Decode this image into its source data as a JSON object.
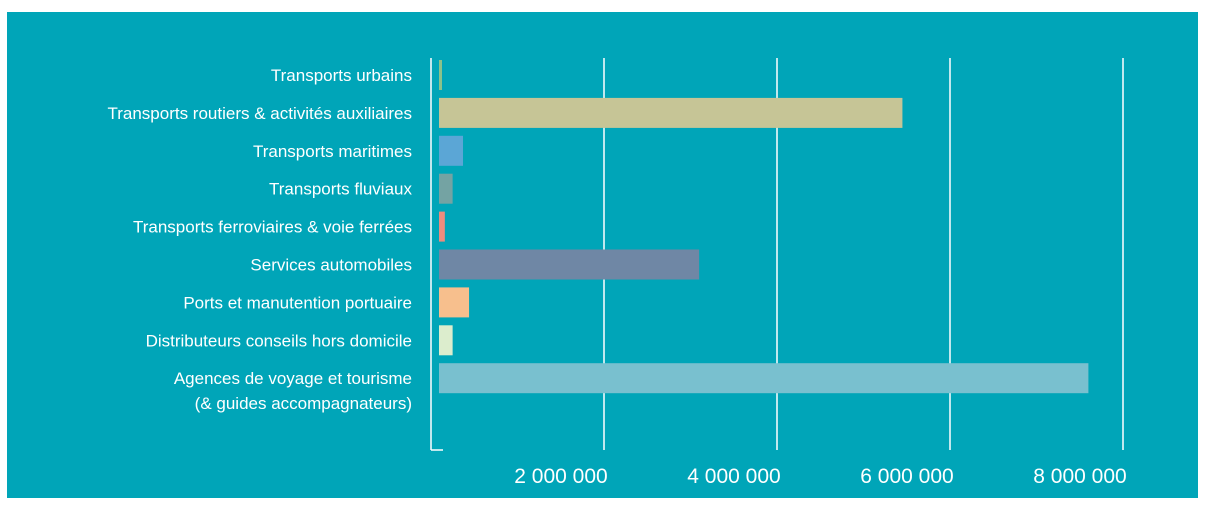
{
  "colors": {
    "background": "#00a5b8",
    "text": "#ffffff",
    "grid": "#ffffff"
  },
  "chart_data": {
    "type": "bar",
    "orientation": "horizontal",
    "title": "",
    "xlabel": "",
    "ylabel": "",
    "xlim": [
      0,
      8000000
    ],
    "grid": true,
    "legend": "none",
    "categories": [
      [
        "Transports urbains"
      ],
      [
        "Transports routiers & activités auxiliaires"
      ],
      [
        "Transports maritimes"
      ],
      [
        "Transports  fluviaux"
      ],
      [
        "Transports ferroviaires & voie ferrées"
      ],
      [
        "Services automobiles"
      ],
      [
        "Ports et manutention portuaire"
      ],
      [
        "Distributeurs conseils hors domicile"
      ],
      [
        "Agences de voyage et tourisme",
        "(& guides accompagnateurs)"
      ]
    ],
    "values": [
      50000,
      5450000,
      370000,
      250000,
      160000,
      3100000,
      440000,
      250000,
      7600000
    ],
    "bar_colors": [
      "#8dc28a",
      "#c6c596",
      "#5ba6d6",
      "#74a3a3",
      "#ed8c7e",
      "#6f87a5",
      "#f7bf8d",
      "#dcedcd",
      "#79c0cf"
    ],
    "x_ticks": [
      2000000,
      4000000,
      6000000,
      8000000
    ],
    "x_tick_labels": [
      "2 000 000",
      "4 000 000",
      "6 000 000",
      "8 000 000"
    ]
  }
}
